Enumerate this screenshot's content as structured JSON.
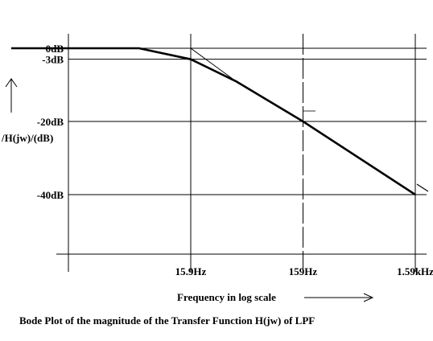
{
  "chart_data": {
    "type": "line",
    "title": "Bode Plot of the magnitude of the Transfer Function H(jw) of LPF",
    "xlabel": "Frequency in log scale",
    "ylabel": "/H(jw)/(dB)",
    "x_scale": "log",
    "xlim": [
      0.4,
      1800
    ],
    "ylim": [
      -75,
      5
    ],
    "x_ticks": [
      {
        "value": 15.9,
        "label": "15.9Hz"
      },
      {
        "value": 159,
        "label": "159Hz"
      },
      {
        "value": 1590,
        "label": "1.59kHz"
      }
    ],
    "y_ticks": [
      {
        "value": 0,
        "label": "0dB"
      },
      {
        "value": -3,
        "label": "-3dB"
      },
      {
        "value": -20,
        "label": "-20dB"
      },
      {
        "value": -40,
        "label": "-40dB"
      }
    ],
    "series": [
      {
        "style": "thick",
        "x": [
          0.4,
          5.5,
          15.9,
          40,
          159,
          1590
        ],
        "y": [
          0,
          0,
          -3,
          -9,
          -20,
          -40
        ]
      },
      {
        "style": "thin",
        "x": [
          5.5,
          15.9,
          40
        ],
        "y": [
          0,
          0,
          -9
        ]
      }
    ],
    "color": "#000000"
  }
}
